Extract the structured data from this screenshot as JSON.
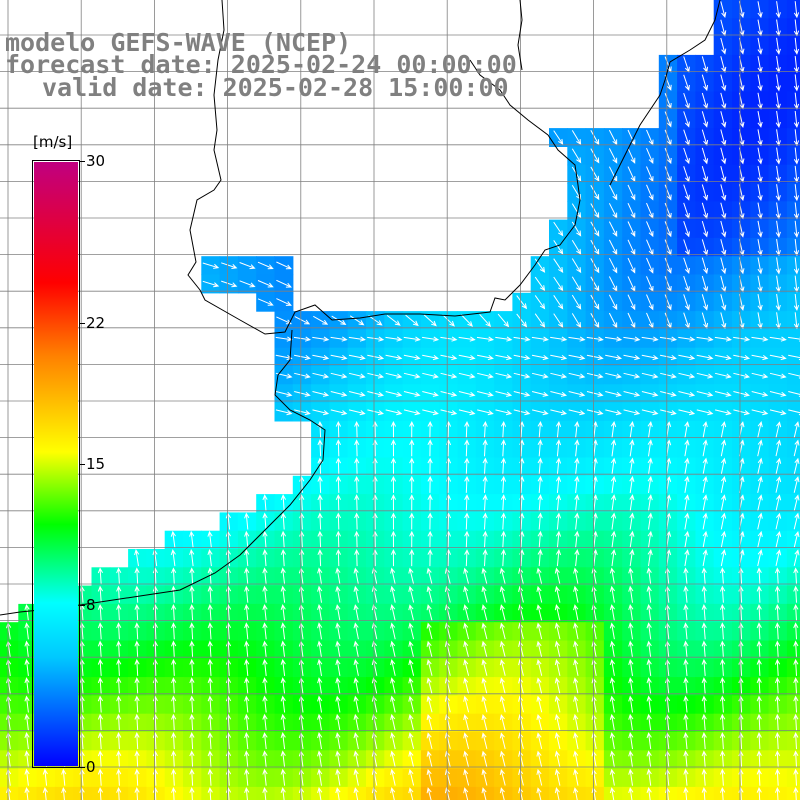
{
  "title": {
    "model": "modelo GEFS-WAVE (NCEP)",
    "forecast": "forecast date: 2025-02-24 00:00:00",
    "valid": "valid date: 2025-02-28 15:00:00"
  },
  "colorbar": {
    "unit": "[m/s]",
    "min": 0,
    "max": 30,
    "ticks": [
      "30",
      "22",
      "15",
      "8",
      "0"
    ],
    "tick_values": [
      30,
      22,
      15,
      8,
      0
    ],
    "colors": [
      "#0000ff",
      "#00c8ff",
      "#00ffff",
      "#00ff00",
      "#ffff00",
      "#ff8000",
      "#ff0000",
      "#c00080"
    ],
    "stops": [
      0,
      0.18,
      0.27,
      0.4,
      0.52,
      0.68,
      0.8,
      1.0
    ]
  },
  "map": {
    "land_color": "#ffffff",
    "coast_color": "#000000",
    "grid_color": "#808080",
    "arrow_color": "#ffffff"
  }
}
